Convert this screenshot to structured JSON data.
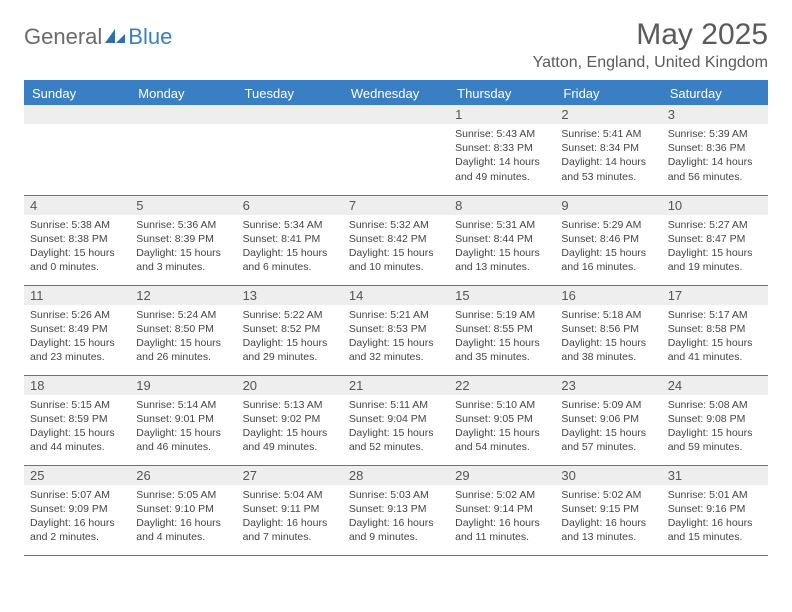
{
  "brand": {
    "part1": "General",
    "part2": "Blue"
  },
  "title": "May 2025",
  "location": "Yatton, England, United Kingdom",
  "colors": {
    "header_bg": "#3a7fc4",
    "header_text": "#ffffff",
    "daynum_bg": "#eeeeee",
    "body_text": "#444444",
    "title_text": "#5a5a5a",
    "border": "#3a7fc4"
  },
  "weekdays": [
    "Sunday",
    "Monday",
    "Tuesday",
    "Wednesday",
    "Thursday",
    "Friday",
    "Saturday"
  ],
  "weeks": [
    [
      null,
      null,
      null,
      null,
      {
        "n": "1",
        "sr": "5:43 AM",
        "ss": "8:33 PM",
        "dl": "14 hours and 49 minutes."
      },
      {
        "n": "2",
        "sr": "5:41 AM",
        "ss": "8:34 PM",
        "dl": "14 hours and 53 minutes."
      },
      {
        "n": "3",
        "sr": "5:39 AM",
        "ss": "8:36 PM",
        "dl": "14 hours and 56 minutes."
      }
    ],
    [
      {
        "n": "4",
        "sr": "5:38 AM",
        "ss": "8:38 PM",
        "dl": "15 hours and 0 minutes."
      },
      {
        "n": "5",
        "sr": "5:36 AM",
        "ss": "8:39 PM",
        "dl": "15 hours and 3 minutes."
      },
      {
        "n": "6",
        "sr": "5:34 AM",
        "ss": "8:41 PM",
        "dl": "15 hours and 6 minutes."
      },
      {
        "n": "7",
        "sr": "5:32 AM",
        "ss": "8:42 PM",
        "dl": "15 hours and 10 minutes."
      },
      {
        "n": "8",
        "sr": "5:31 AM",
        "ss": "8:44 PM",
        "dl": "15 hours and 13 minutes."
      },
      {
        "n": "9",
        "sr": "5:29 AM",
        "ss": "8:46 PM",
        "dl": "15 hours and 16 minutes."
      },
      {
        "n": "10",
        "sr": "5:27 AM",
        "ss": "8:47 PM",
        "dl": "15 hours and 19 minutes."
      }
    ],
    [
      {
        "n": "11",
        "sr": "5:26 AM",
        "ss": "8:49 PM",
        "dl": "15 hours and 23 minutes."
      },
      {
        "n": "12",
        "sr": "5:24 AM",
        "ss": "8:50 PM",
        "dl": "15 hours and 26 minutes."
      },
      {
        "n": "13",
        "sr": "5:22 AM",
        "ss": "8:52 PM",
        "dl": "15 hours and 29 minutes."
      },
      {
        "n": "14",
        "sr": "5:21 AM",
        "ss": "8:53 PM",
        "dl": "15 hours and 32 minutes."
      },
      {
        "n": "15",
        "sr": "5:19 AM",
        "ss": "8:55 PM",
        "dl": "15 hours and 35 minutes."
      },
      {
        "n": "16",
        "sr": "5:18 AM",
        "ss": "8:56 PM",
        "dl": "15 hours and 38 minutes."
      },
      {
        "n": "17",
        "sr": "5:17 AM",
        "ss": "8:58 PM",
        "dl": "15 hours and 41 minutes."
      }
    ],
    [
      {
        "n": "18",
        "sr": "5:15 AM",
        "ss": "8:59 PM",
        "dl": "15 hours and 44 minutes."
      },
      {
        "n": "19",
        "sr": "5:14 AM",
        "ss": "9:01 PM",
        "dl": "15 hours and 46 minutes."
      },
      {
        "n": "20",
        "sr": "5:13 AM",
        "ss": "9:02 PM",
        "dl": "15 hours and 49 minutes."
      },
      {
        "n": "21",
        "sr": "5:11 AM",
        "ss": "9:04 PM",
        "dl": "15 hours and 52 minutes."
      },
      {
        "n": "22",
        "sr": "5:10 AM",
        "ss": "9:05 PM",
        "dl": "15 hours and 54 minutes."
      },
      {
        "n": "23",
        "sr": "5:09 AM",
        "ss": "9:06 PM",
        "dl": "15 hours and 57 minutes."
      },
      {
        "n": "24",
        "sr": "5:08 AM",
        "ss": "9:08 PM",
        "dl": "15 hours and 59 minutes."
      }
    ],
    [
      {
        "n": "25",
        "sr": "5:07 AM",
        "ss": "9:09 PM",
        "dl": "16 hours and 2 minutes."
      },
      {
        "n": "26",
        "sr": "5:05 AM",
        "ss": "9:10 PM",
        "dl": "16 hours and 4 minutes."
      },
      {
        "n": "27",
        "sr": "5:04 AM",
        "ss": "9:11 PM",
        "dl": "16 hours and 7 minutes."
      },
      {
        "n": "28",
        "sr": "5:03 AM",
        "ss": "9:13 PM",
        "dl": "16 hours and 9 minutes."
      },
      {
        "n": "29",
        "sr": "5:02 AM",
        "ss": "9:14 PM",
        "dl": "16 hours and 11 minutes."
      },
      {
        "n": "30",
        "sr": "5:02 AM",
        "ss": "9:15 PM",
        "dl": "16 hours and 13 minutes."
      },
      {
        "n": "31",
        "sr": "5:01 AM",
        "ss": "9:16 PM",
        "dl": "16 hours and 15 minutes."
      }
    ]
  ],
  "labels": {
    "sunrise": "Sunrise: ",
    "sunset": "Sunset: ",
    "daylight": "Daylight: "
  }
}
